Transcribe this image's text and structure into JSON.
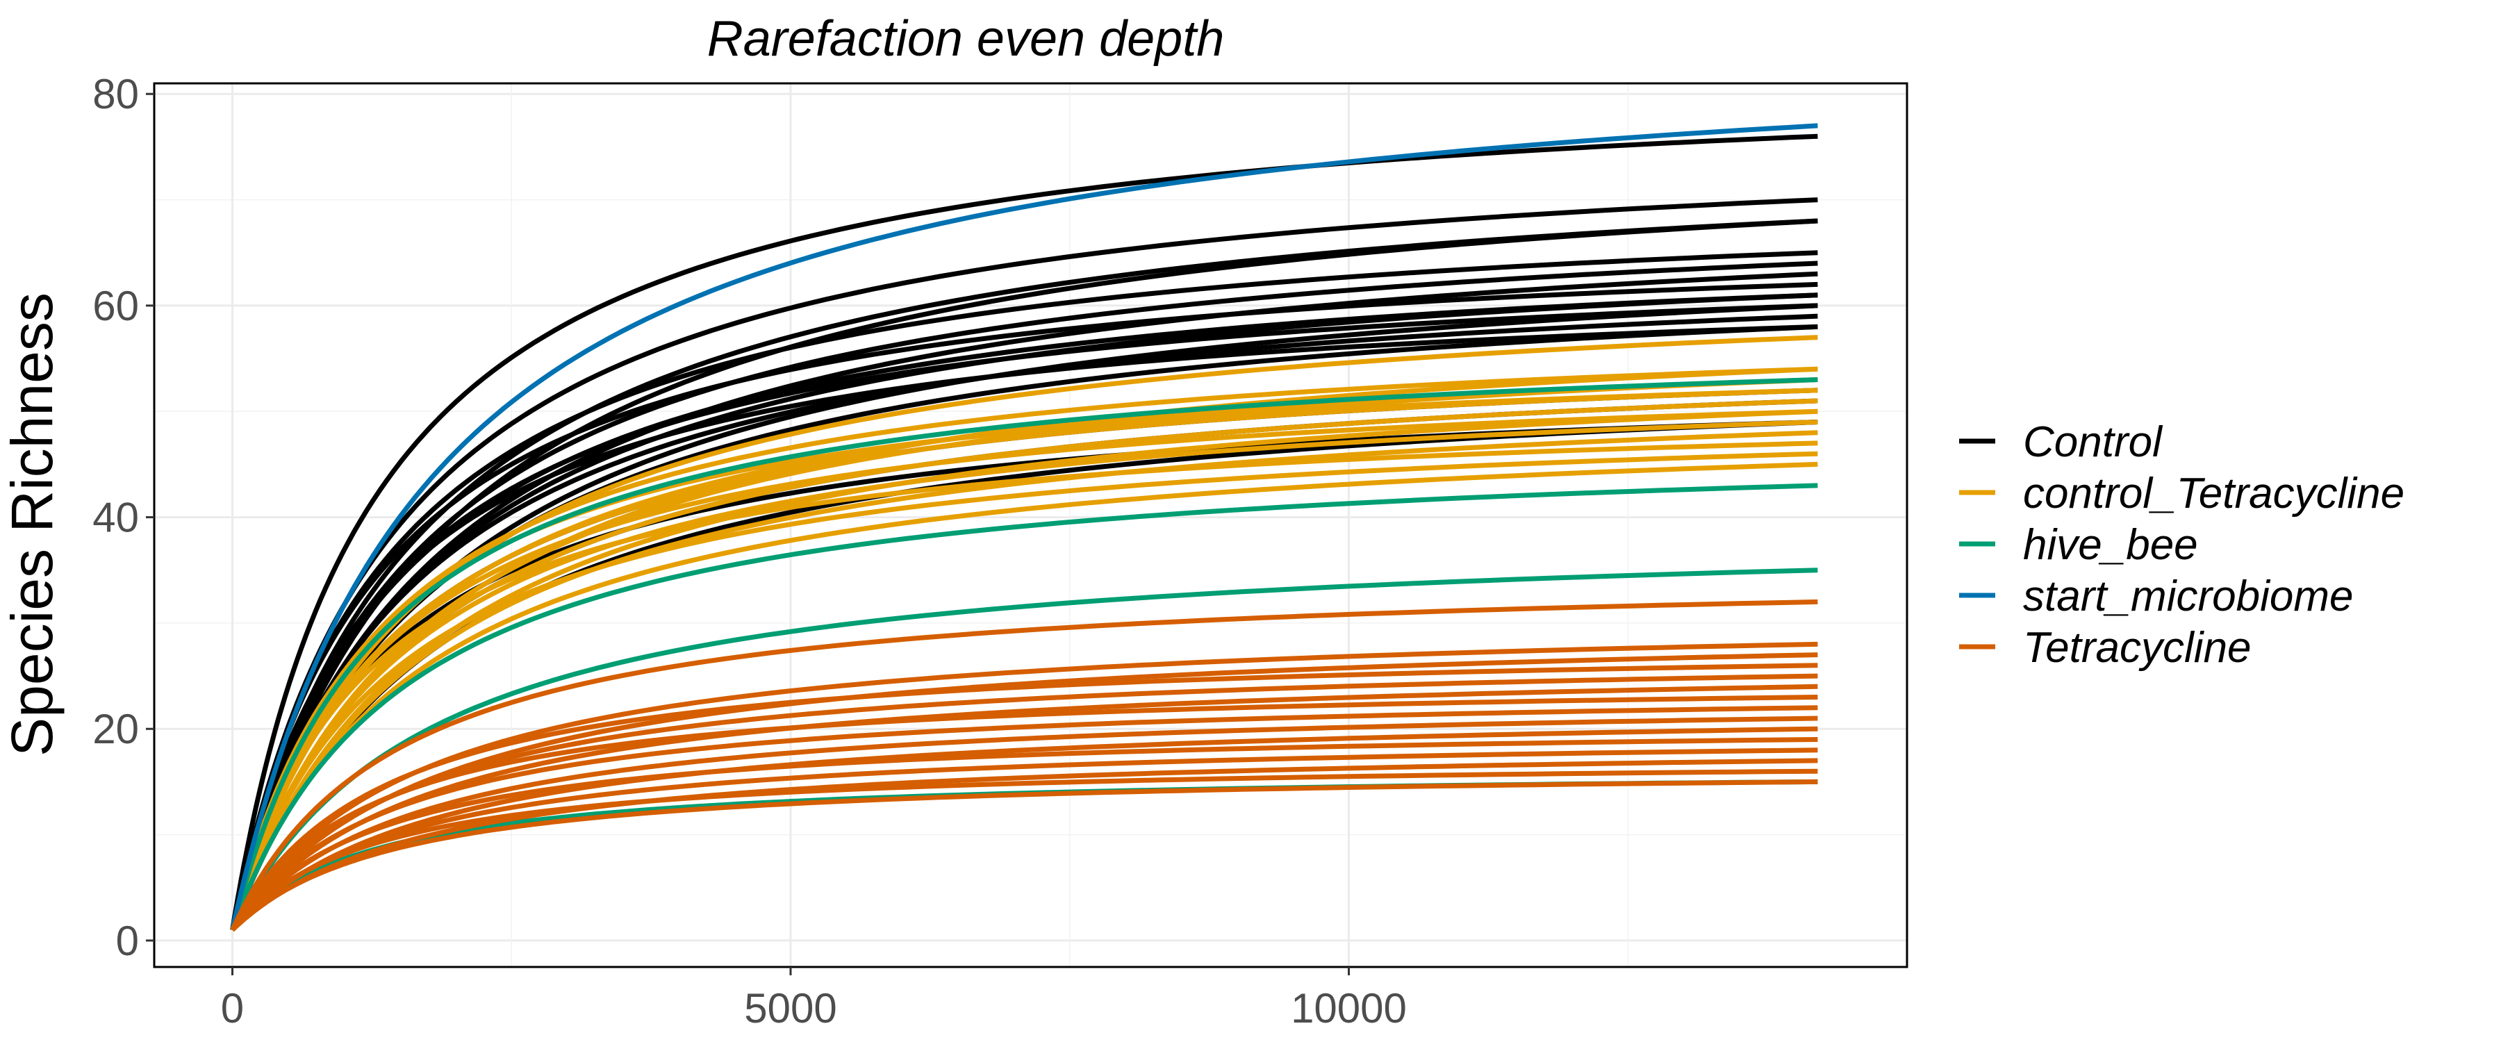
{
  "chart_data": {
    "type": "line",
    "title": "Rarefaction even depth",
    "xlabel": "",
    "ylabel": "Species Richness",
    "xlim": [
      -700,
      15000
    ],
    "ylim": [
      -2.5,
      81
    ],
    "x_ticks": [
      0,
      5000,
      10000
    ],
    "y_ticks": [
      0,
      20,
      40,
      60,
      80
    ],
    "grid": true,
    "legend_position": "right",
    "x_max": 14200,
    "groups": [
      {
        "name": "Control",
        "color": "#000000",
        "final_values": [
          76,
          70,
          68,
          68,
          65,
          64,
          63,
          62,
          61,
          61,
          60,
          60,
          59,
          58,
          58,
          52,
          51,
          49,
          49
        ]
      },
      {
        "name": "control_Tetracycline",
        "color": "#E69F00",
        "final_values": [
          57,
          54,
          54,
          53,
          53,
          52,
          52,
          51,
          50,
          50,
          49,
          48,
          47,
          46,
          45
        ]
      },
      {
        "name": "hive_bee",
        "color": "#009E73",
        "final_values": [
          53,
          43,
          35,
          15
        ]
      },
      {
        "name": "start_microbiome",
        "color": "#0072B2",
        "final_values": [
          77
        ]
      },
      {
        "name": "Tetracycline",
        "color": "#D55E00",
        "final_values": [
          32,
          28,
          27,
          26,
          25,
          24,
          23,
          22,
          21,
          20,
          19,
          18,
          17,
          16,
          15
        ]
      }
    ]
  }
}
